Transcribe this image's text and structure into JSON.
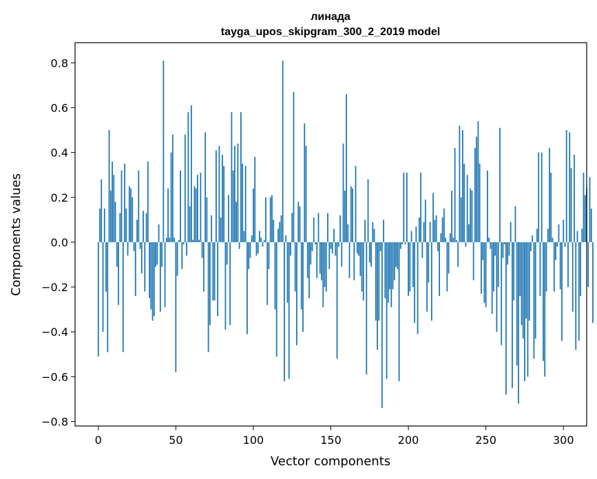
{
  "chart_data": {
    "type": "bar",
    "title": "линада",
    "subtitle": "tayga_upos_skipgram_300_2_2019 model",
    "xlabel": "Vector components",
    "ylabel": "Components values",
    "xlim": [
      -15,
      315
    ],
    "ylim": [
      -0.82,
      0.89
    ],
    "xticks": [
      0,
      50,
      100,
      150,
      200,
      250,
      300
    ],
    "yticks": [
      -0.8,
      -0.6,
      -0.4,
      -0.2,
      0.0,
      0.2,
      0.4,
      0.6,
      0.8
    ],
    "ytick_labels": [
      "−0.8",
      "−0.6",
      "−0.4",
      "−0.2",
      "0.0",
      "0.2",
      "0.4",
      "0.6",
      "0.8"
    ],
    "grid": false,
    "bar_color": "#1f77b4",
    "x_start": 0,
    "values": [
      -0.51,
      0.15,
      0.28,
      -0.4,
      0.15,
      -0.22,
      -0.49,
      0.5,
      0.23,
      0.36,
      0.3,
      0.18,
      -0.11,
      -0.28,
      0.13,
      0.32,
      -0.49,
      0.35,
      0.15,
      -0.06,
      0.25,
      0.24,
      0.2,
      -0.04,
      -0.24,
      0.1,
      0.32,
      -0.03,
      -0.14,
      0.14,
      -0.22,
      0.13,
      0.36,
      -0.25,
      -0.3,
      -0.35,
      -0.33,
      -0.11,
      -0.1,
      0.08,
      -0.31,
      -0.11,
      0.81,
      -0.29,
      0.02,
      0.24,
      0.02,
      0.4,
      0.48,
      0.02,
      -0.58,
      -0.15,
      0.01,
      0.32,
      -0.12,
      -0.01,
      0.48,
      -0.06,
      0.58,
      0.16,
      0.61,
      0.01,
      0.25,
      0.24,
      0.3,
      0.01,
      0.31,
      -0.07,
      -0.22,
      0.49,
      0.2,
      -0.49,
      -0.37,
      0.12,
      -0.26,
      -0.26,
      0.41,
      -0.33,
      0.43,
      0.11,
      0.39,
      0.34,
      -0.39,
      -0.1,
      0.21,
      -0.37,
      0.58,
      0.32,
      0.43,
      0.18,
      0.44,
      -0.03,
      0.58,
      0.35,
      0.05,
      0.34,
      -0.41,
      -0.12,
      -0.07,
      0.03,
      0.24,
      0.38,
      -0.06,
      -0.05,
      0.05,
      0.02,
      -0.02,
      0.01,
      0.2,
      -0.28,
      -0.12,
      0.2,
      0.21,
      0.1,
      -0.3,
      -0.51,
      0.06,
      0.09,
      0.12,
      0.81,
      -0.62,
      0.03,
      -0.27,
      -0.61,
      -0.06,
      0.13,
      0.67,
      -0.22,
      -0.46,
      0.18,
      0.16,
      -0.3,
      -0.4,
      0.53,
      0.43,
      -0.16,
      -0.25,
      -0.1,
      -0.04,
      0.11,
      -0.01,
      -0.16,
      0.13,
      -0.14,
      -0.17,
      -0.29,
      -0.2,
      -0.22,
      0.13,
      -0.12,
      -0.03,
      -0.05,
      0.06,
      -0.06,
      -0.52,
      -0.02,
      0.12,
      -0.11,
      0.44,
      0.23,
      0.66,
      0.08,
      -0.16,
      0.25,
      0.24,
      -0.17,
      0.34,
      -0.05,
      -0.06,
      -0.15,
      -0.22,
      -0.26,
      0.1,
      -0.59,
      0.28,
      -0.09,
      -0.11,
      0.09,
      0.06,
      -0.35,
      -0.48,
      -0.35,
      -0.04,
      -0.74,
      0.1,
      -0.25,
      -0.61,
      -0.27,
      -0.21,
      -0.29,
      -0.21,
      -0.17,
      -0.11,
      -0.12,
      -0.62,
      -0.03,
      -0.01,
      0.31,
      -0.01,
      0.31,
      -0.24,
      -0.22,
      0.05,
      -0.2,
      -0.36,
      0.07,
      -0.41,
      0.11,
      0.31,
      -0.07,
      0.09,
      0.19,
      -0.31,
      -0.18,
      0.09,
      -0.35,
      0.22,
      0.1,
      0.12,
      -0.04,
      -0.24,
      0.04,
      0.11,
      0.15,
      0.02,
      -0.22,
      -0.14,
      0.04,
      0.23,
      0.02,
      0.42,
      0.01,
      -0.11,
      0.52,
      0.2,
      0.5,
      0.35,
      -0.02,
      0.3,
      0.08,
      0.24,
      0.23,
      -0.17,
      0.42,
      0.47,
      0.54,
      0.35,
      -0.23,
      -0.08,
      -0.27,
      -0.29,
      0.32,
      0.02,
      -0.03,
      -0.32,
      -0.22,
      -0.06,
      -0.4,
      -0.2,
      0.51,
      -0.46,
      -0.07,
      -0.01,
      -0.68,
      -0.1,
      -0.06,
      0.09,
      -0.65,
      -0.26,
      0.16,
      -0.55,
      -0.72,
      -0.24,
      -0.37,
      -0.43,
      -0.62,
      -0.34,
      -0.6,
      -0.35,
      -0.04,
      0.03,
      -0.52,
      -0.43,
      0.06,
      0.4,
      -0.24,
      0.4,
      -0.53,
      -0.6,
      -0.22,
      0.06,
      0.42,
      0.31,
      0.02,
      -0.22,
      -0.08,
      -0.02,
      0.08,
      -0.21,
      -0.44,
      0.1,
      -0.02,
      0.5,
      -0.2,
      0.49,
      0.33,
      -0.31,
      0.39,
      -0.48,
      0.05,
      -0.44,
      -0.24,
      0.06,
      0.31,
      0.21,
      0.24,
      -0.2,
      0.29,
      0.15,
      -0.36
    ]
  }
}
